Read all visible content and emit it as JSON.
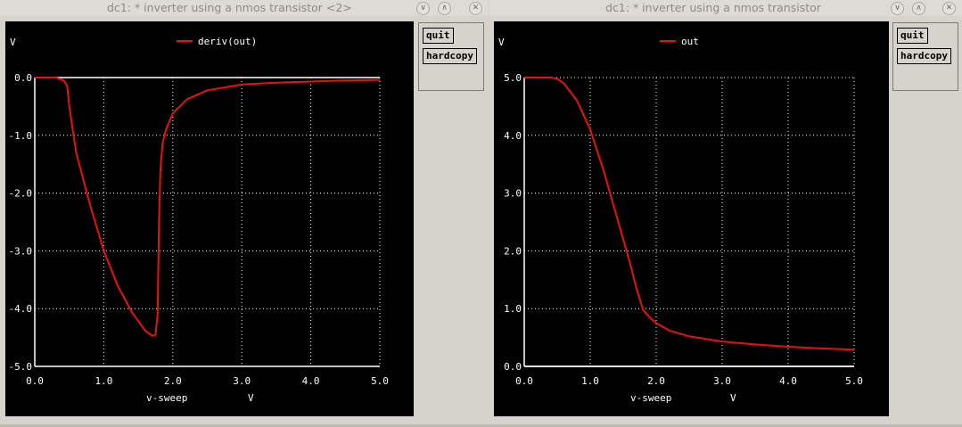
{
  "window_left": {
    "title": "dc1: * inverter using a nmos transistor <2>",
    "buttons": {
      "quit": "quit",
      "hardcopy": "hardcopy"
    }
  },
  "window_right": {
    "title": "dc1: * inverter using a nmos transistor",
    "buttons": {
      "quit": "quit",
      "hardcopy": "hardcopy"
    }
  },
  "icons": {
    "minimize": "chevron-down-icon",
    "maximize": "chevron-up-icon",
    "close": "close-icon"
  },
  "colors": {
    "plot_bg": "#000000",
    "grid": "#ffffff",
    "trace": "#e8120c",
    "text": "#ffffff"
  },
  "chart_data": [
    {
      "type": "line",
      "title": "",
      "xlabel": "v-sweep",
      "xunit": "V",
      "ylabel": "V",
      "xlim": [
        0,
        5
      ],
      "ylim": [
        -5,
        0
      ],
      "x_ticks": [
        "0.0",
        "1.0",
        "2.0",
        "3.0",
        "4.0",
        "5.0"
      ],
      "y_ticks": [
        "0.0",
        "-1.0",
        "-2.0",
        "-3.0",
        "-4.0",
        "-5.0"
      ],
      "x_tick_values": [
        0,
        1,
        2,
        3,
        4,
        5
      ],
      "y_tick_values": [
        0,
        -1,
        -2,
        -3,
        -4,
        -5
      ],
      "grid": true,
      "legend": "top-center",
      "series": [
        {
          "name": "deriv(out)",
          "x": [
            0,
            0.3,
            0.42,
            0.47,
            0.5,
            0.6,
            0.8,
            1.0,
            1.2,
            1.4,
            1.6,
            1.7,
            1.75,
            1.78,
            1.8,
            1.82,
            1.85,
            1.9,
            2.0,
            2.2,
            2.5,
            3.0,
            3.5,
            4.0,
            4.5,
            5.0
          ],
          "y": [
            0,
            0,
            -0.05,
            -0.15,
            -0.5,
            -1.3,
            -2.2,
            -3.0,
            -3.6,
            -4.05,
            -4.38,
            -4.47,
            -4.45,
            -4.1,
            -2.5,
            -1.6,
            -1.15,
            -0.9,
            -0.62,
            -0.38,
            -0.22,
            -0.12,
            -0.09,
            -0.07,
            -0.05,
            -0.04
          ]
        }
      ]
    },
    {
      "type": "line",
      "title": "",
      "xlabel": "v-sweep",
      "xunit": "V",
      "ylabel": "V",
      "xlim": [
        0,
        5
      ],
      "ylim": [
        0,
        5
      ],
      "x_ticks": [
        "0.0",
        "1.0",
        "2.0",
        "3.0",
        "4.0",
        "5.0"
      ],
      "y_ticks": [
        "0.0",
        "1.0",
        "2.0",
        "3.0",
        "4.0",
        "5.0"
      ],
      "x_tick_values": [
        0,
        1,
        2,
        3,
        4,
        5
      ],
      "y_tick_values": [
        0,
        1,
        2,
        3,
        4,
        5
      ],
      "grid": true,
      "legend": "top-center",
      "series": [
        {
          "name": "out",
          "x": [
            0,
            0.4,
            0.5,
            0.6,
            0.8,
            1.0,
            1.2,
            1.4,
            1.6,
            1.7,
            1.8,
            1.9,
            2.0,
            2.2,
            2.5,
            3.0,
            3.5,
            4.0,
            4.5,
            5.0
          ],
          "y": [
            5.0,
            5.0,
            4.98,
            4.9,
            4.6,
            4.1,
            3.4,
            2.6,
            1.8,
            1.35,
            0.98,
            0.85,
            0.75,
            0.62,
            0.52,
            0.43,
            0.38,
            0.34,
            0.31,
            0.29
          ]
        }
      ]
    }
  ]
}
